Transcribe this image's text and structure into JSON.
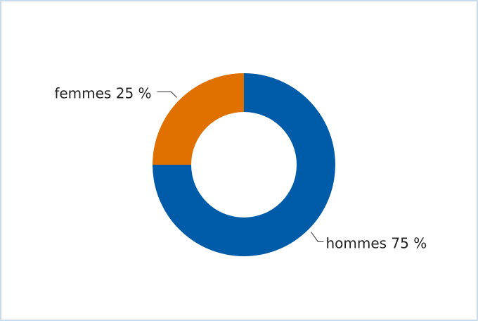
{
  "chart_data": {
    "type": "donut",
    "categories": [
      "hommes",
      "femmes"
    ],
    "values": [
      75,
      25
    ],
    "value_labels": [
      "75 %",
      "25 %"
    ],
    "colors": [
      "#005ca9",
      "#e07000"
    ]
  }
}
